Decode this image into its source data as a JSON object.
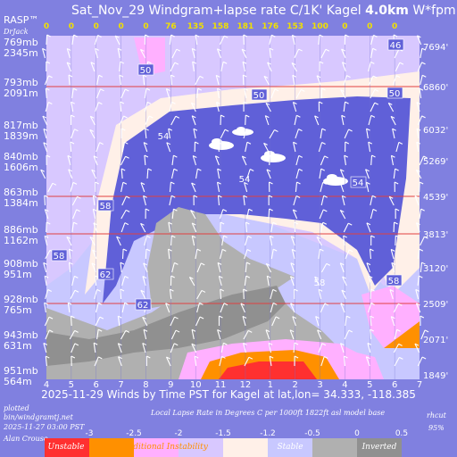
{
  "chart_data": {
    "type": "heatmap",
    "title": "Sat_Nov_29 Windgram+lapse rate C/1K'  Kagel",
    "title_height": "4.0km",
    "title_tail": "W*fpm up",
    "top_left_label": "RASP™",
    "top_left_sub": "DrJack",
    "x_ticks": [
      "4",
      "5",
      "6",
      "7",
      "8",
      "9",
      "10",
      "11",
      "12",
      "1",
      "2",
      "3",
      "4",
      "5",
      "6",
      "7"
    ],
    "thermal_wstar": [
      "0",
      "0",
      "0",
      "0",
      "0",
      "76",
      "135",
      "158",
      "181",
      "176",
      "153",
      "100",
      "0",
      "0",
      "0"
    ],
    "levels": [
      {
        "mb": "769mb",
        "ft": "2345m",
        "right": "7694'"
      },
      {
        "mb": "793mb",
        "ft": "2091m",
        "right": "6860'"
      },
      {
        "mb": "817mb",
        "ft": "1839m",
        "right": "6032'"
      },
      {
        "mb": "840mb",
        "ft": "1606m",
        "right": "5269'"
      },
      {
        "mb": "863mb",
        "ft": "1384m",
        "right": "4539'"
      },
      {
        "mb": "886mb",
        "ft": "1162m",
        "right": "3813'"
      },
      {
        "mb": "908mb",
        "ft": "951m",
        "right": "3120'"
      },
      {
        "mb": "928mb",
        "ft": "765m",
        "right": "2509'"
      },
      {
        "mb": "943mb",
        "ft": "631m",
        "right": "2071'"
      },
      {
        "mb": "951mb",
        "ft": "564m",
        "right": "1849'"
      }
    ],
    "rh_labels": [
      "46",
      "50",
      "50",
      "50",
      "54",
      "54",
      "54",
      "58",
      "58",
      "58",
      "58",
      "62",
      "62"
    ],
    "xlabel": "2025-11-29 Winds by Time PST for Kagel at lat,lon= 34.333, -118.385",
    "subtitle": "Local Lapse Rate in Degrees C per 1000ft   1822ft asl model base",
    "plotted": [
      "plotted",
      "bin/windgramtj.net",
      "2025-11-27 03:00 PST",
      "Alan Crouse"
    ],
    "rh_note": [
      "rhcut",
      "95%"
    ],
    "colorbar": {
      "ticks": [
        "-3",
        "-2.5",
        "-2",
        "-1.5",
        "-1.2",
        "-0.5",
        "0",
        "0.5"
      ],
      "labels": [
        "Unstable",
        "Conditional Instability",
        "Stable",
        "Inverted"
      ],
      "colors": [
        "#ff3030",
        "#ff9000",
        "#ffb0ff",
        "#d8c8ff",
        "#fff0e8",
        "#c8c8ff",
        "#b0b0b0",
        "#909090"
      ]
    },
    "legend_position": "bottom"
  }
}
